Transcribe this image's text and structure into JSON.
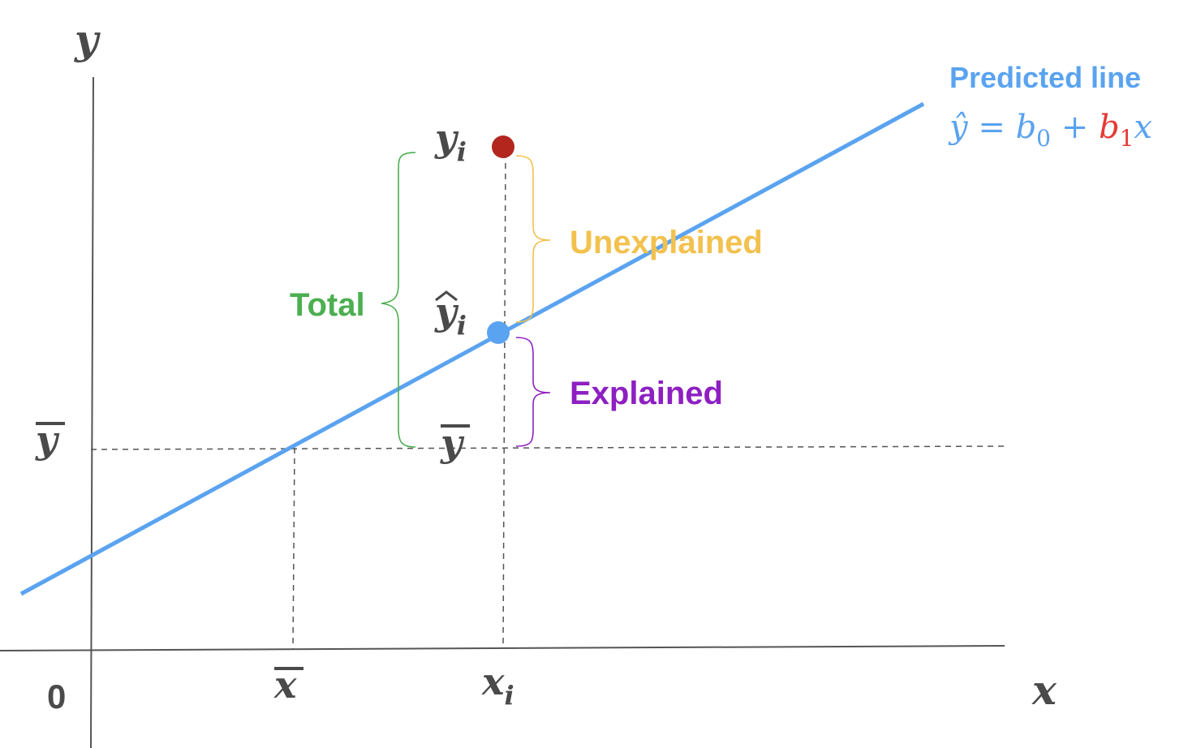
{
  "axes": {
    "y_label": "y",
    "x_label": "x",
    "origin_label": "0"
  },
  "marks": {
    "y_bar_left": "y",
    "x_bar": "x",
    "x_i": "x",
    "x_i_sub": "i",
    "y_i": "y",
    "y_i_sub": "i",
    "y_hat_i": "y",
    "y_hat_i_sub": "i",
    "y_bar_center": "y"
  },
  "labels": {
    "total": "Total",
    "unexplained": "Unexplained",
    "explained": "Explained",
    "predicted_line": "Predicted line"
  },
  "equation": {
    "lhs": "ŷ",
    "eq": " = ",
    "b0": "b",
    "b0_sub": "0",
    "plus": " + ",
    "b1": "b",
    "b1_sub": "1",
    "x": "x"
  },
  "colors": {
    "line": "#5aa3f0",
    "observed_point": "#b3261e",
    "predicted_point": "#5aa3f0",
    "total": "#4caf50",
    "unexplained": "#f2c14e",
    "explained": "#8e1fc2",
    "b1": "#e53935",
    "axis": "#555555",
    "guide": "#555555"
  }
}
